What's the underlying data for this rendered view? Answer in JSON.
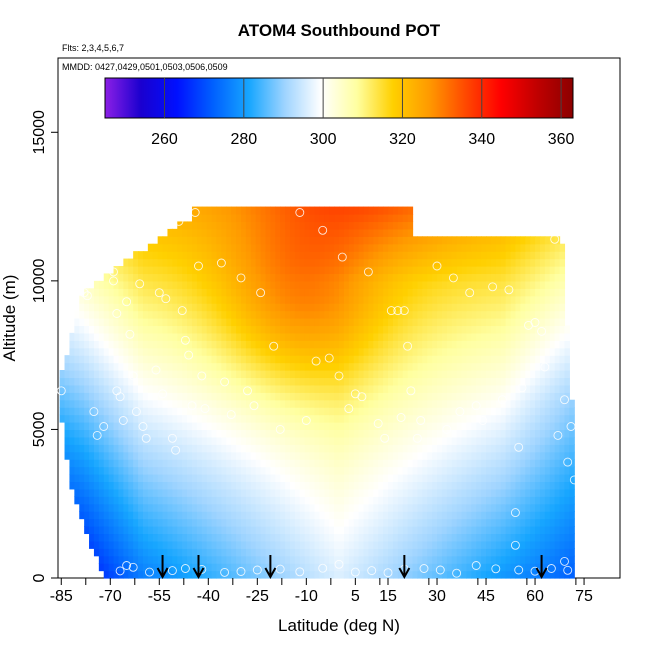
{
  "chart_data": {
    "type": "heatmap",
    "title": "ATOM4 Southbound POT",
    "flights_label": "Flts: 2,3,4,5,6,7",
    "dates_label": "MMDD: 0427,0429,0501,0503,0506,0509",
    "xlabel": "Latitude (deg N)",
    "ylabel": "Altitude (m)",
    "xlim": [
      -86,
      86
    ],
    "ylim": [
      0,
      17500
    ],
    "x_ticks": [
      -85,
      -70,
      -55,
      -40,
      -25,
      -10,
      5,
      15,
      30,
      45,
      60,
      75
    ],
    "y_ticks": [
      0,
      5000,
      10000,
      15000
    ],
    "colorbar": {
      "min": 245,
      "max": 363,
      "ticks": [
        260,
        280,
        300,
        320,
        340,
        360
      ],
      "colors": [
        "#8c1fe6",
        "#1a00cf",
        "#0010ff",
        "#0060ff",
        "#17a6ff",
        "#9fd4ff",
        "#ffffff",
        "#ffffa0",
        "#ffd000",
        "#ff9a00",
        "#ff4a00",
        "#ff0000",
        "#c00000",
        "#8c0000"
      ]
    },
    "profile_markers_lat": [
      -54,
      -43,
      -21,
      20,
      62
    ],
    "surface_points": [
      [
        -67,
        240
      ],
      [
        -65,
        420
      ],
      [
        -63,
        360
      ],
      [
        -58,
        200
      ],
      [
        -51,
        250
      ],
      [
        -47,
        320
      ],
      [
        -42,
        290
      ],
      [
        -35,
        190
      ],
      [
        -30,
        220
      ],
      [
        -25,
        270
      ],
      [
        -18,
        300
      ],
      [
        -12,
        210
      ],
      [
        -5,
        330
      ],
      [
        0,
        460
      ],
      [
        5,
        200
      ],
      [
        10,
        250
      ],
      [
        15,
        180
      ],
      [
        20,
        300
      ],
      [
        26,
        320
      ],
      [
        31,
        270
      ],
      [
        36,
        160
      ],
      [
        42,
        420
      ],
      [
        48,
        310
      ],
      [
        55,
        270
      ],
      [
        60,
        230
      ],
      [
        65,
        320
      ],
      [
        69,
        560
      ],
      [
        70,
        260
      ]
    ],
    "samples": [
      [
        -85,
        6300
      ],
      [
        -78,
        9600
      ],
      [
        -77,
        9500
      ],
      [
        -75,
        5600
      ],
      [
        -74,
        4800
      ],
      [
        -72,
        5100
      ],
      [
        -69,
        10300
      ],
      [
        -69,
        10000
      ],
      [
        -68,
        8900
      ],
      [
        -68,
        6300
      ],
      [
        -67,
        6100
      ],
      [
        -66,
        5300
      ],
      [
        -65,
        9300
      ],
      [
        -64,
        8200
      ],
      [
        -63,
        6800
      ],
      [
        -62,
        5600
      ],
      [
        -61,
        9900
      ],
      [
        -60,
        5100
      ],
      [
        -59,
        4700
      ],
      [
        -58,
        11700
      ],
      [
        -56,
        7000
      ],
      [
        -55,
        9600
      ],
      [
        -54,
        6200
      ],
      [
        -53,
        9400
      ],
      [
        -52,
        11900
      ],
      [
        -51,
        4700
      ],
      [
        -50,
        4300
      ],
      [
        -49,
        12000
      ],
      [
        -48,
        9000
      ],
      [
        -47,
        8000
      ],
      [
        -46,
        7500
      ],
      [
        -45,
        5800
      ],
      [
        -44,
        12300
      ],
      [
        -43,
        10500
      ],
      [
        -42,
        6800
      ],
      [
        -41,
        5700
      ],
      [
        -36,
        10600
      ],
      [
        -35,
        6600
      ],
      [
        -33,
        5500
      ],
      [
        -30,
        10100
      ],
      [
        -28,
        6300
      ],
      [
        -26,
        5800
      ],
      [
        -24,
        9600
      ],
      [
        -20,
        7800
      ],
      [
        -18,
        5000
      ],
      [
        -12,
        12300
      ],
      [
        -10,
        5300
      ],
      [
        -7,
        7300
      ],
      [
        -5,
        11700
      ],
      [
        -3,
        7400
      ],
      [
        0,
        6800
      ],
      [
        1,
        10800
      ],
      [
        3,
        5700
      ],
      [
        5,
        6200
      ],
      [
        7,
        6100
      ],
      [
        9,
        10300
      ],
      [
        12,
        5200
      ],
      [
        14,
        4700
      ],
      [
        16,
        9000
      ],
      [
        18,
        9000
      ],
      [
        19,
        5400
      ],
      [
        20,
        9000
      ],
      [
        21,
        7800
      ],
      [
        22,
        6300
      ],
      [
        24,
        4700
      ],
      [
        25,
        5300
      ],
      [
        28,
        11700
      ],
      [
        30,
        10500
      ],
      [
        33,
        5000
      ],
      [
        35,
        10100
      ],
      [
        37,
        5600
      ],
      [
        40,
        9600
      ],
      [
        42,
        5800
      ],
      [
        44,
        5300
      ],
      [
        47,
        9800
      ],
      [
        50,
        6000
      ],
      [
        52,
        9700
      ],
      [
        55,
        4400
      ],
      [
        56,
        6400
      ],
      [
        58,
        8500
      ],
      [
        60,
        8600
      ],
      [
        62,
        8300
      ],
      [
        63,
        7100
      ],
      [
        66,
        11400
      ],
      [
        67,
        4800
      ],
      [
        69,
        6000
      ],
      [
        70,
        3900
      ],
      [
        71,
        5100
      ],
      [
        72,
        3300
      ],
      [
        54,
        1100
      ],
      [
        54,
        2200
      ]
    ]
  }
}
